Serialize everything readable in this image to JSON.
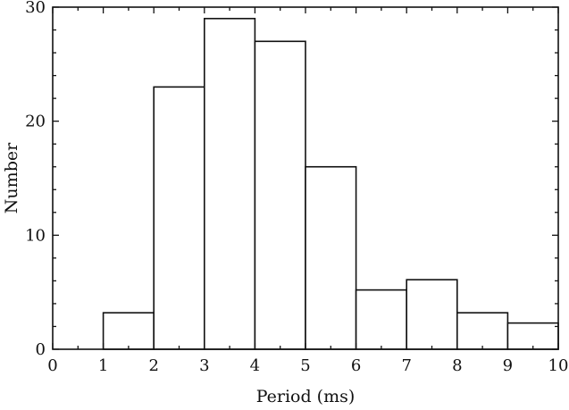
{
  "chart_data": {
    "type": "bar",
    "subtype": "histogram",
    "title": "",
    "xlabel": "Period (ms)",
    "ylabel": "Number",
    "xlim": [
      0,
      10
    ],
    "ylim": [
      0,
      30
    ],
    "x_ticks": [
      0,
      1,
      2,
      3,
      4,
      5,
      6,
      7,
      8,
      9,
      10
    ],
    "y_ticks": [
      0,
      10,
      20,
      30
    ],
    "grid": false,
    "legend": "none",
    "bins": [
      {
        "x0": 1,
        "x1": 2,
        "value": 3.2
      },
      {
        "x0": 2,
        "x1": 3,
        "value": 23
      },
      {
        "x0": 3,
        "x1": 4,
        "value": 29
      },
      {
        "x0": 4,
        "x1": 5,
        "value": 27
      },
      {
        "x0": 5,
        "x1": 6,
        "value": 16
      },
      {
        "x0": 6,
        "x1": 7,
        "value": 5.2
      },
      {
        "x0": 7,
        "x1": 8,
        "value": 6.1
      },
      {
        "x0": 8,
        "x1": 9,
        "value": 3.2
      },
      {
        "x0": 9,
        "x1": 10,
        "value": 2.3
      }
    ],
    "bar_fill": "#ffffff",
    "bar_stroke": "#111111"
  }
}
